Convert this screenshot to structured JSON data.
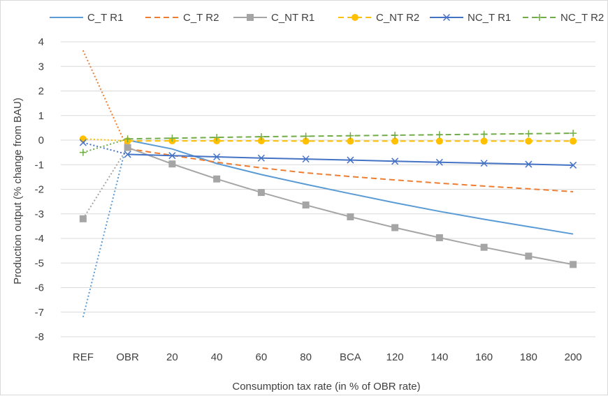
{
  "chart_data": {
    "type": "line",
    "title": "",
    "xlabel": "Consumption tax rate (in % of OBR rate)",
    "ylabel": "Production output (% change from BAU)",
    "categories": [
      "REF",
      "OBR",
      "20",
      "40",
      "60",
      "80",
      "BCA",
      "120",
      "140",
      "160",
      "180",
      "200"
    ],
    "y_ticks": [
      "4",
      "3",
      "2",
      "1",
      "0",
      "-1",
      "-2",
      "-3",
      "-4",
      "-5",
      "-6",
      "-7",
      "-8"
    ],
    "ylim": [
      -8,
      4
    ],
    "grid": "horizontal",
    "legend_position": "top",
    "note": "Segment from REF to OBR is drawn dotted for each series",
    "series": [
      {
        "name": "C_T R1",
        "color": "#5b9bd5",
        "dash": "solid",
        "marker": "none",
        "values": [
          -7.2,
          0.0,
          -0.36,
          -0.95,
          -1.4,
          -1.8,
          -2.18,
          -2.55,
          -2.9,
          -3.22,
          -3.52,
          -3.82
        ]
      },
      {
        "name": "C_T R2",
        "color": "#ed7d31",
        "dash": "dashed",
        "marker": "none",
        "values": [
          3.65,
          -0.35,
          -0.62,
          -0.9,
          -1.13,
          -1.33,
          -1.48,
          -1.62,
          -1.75,
          -1.87,
          -1.98,
          -2.1
        ]
      },
      {
        "name": "C_NT R1",
        "color": "#a5a5a5",
        "dash": "solid",
        "marker": "square",
        "values": [
          -3.2,
          -0.3,
          -0.97,
          -1.58,
          -2.13,
          -2.64,
          -3.12,
          -3.56,
          -3.97,
          -4.36,
          -4.72,
          -5.06
        ]
      },
      {
        "name": "C_NT R2",
        "color": "#ffc000",
        "dash": "dashed",
        "marker": "circle",
        "values": [
          0.05,
          -0.03,
          -0.03,
          -0.03,
          -0.03,
          -0.04,
          -0.04,
          -0.04,
          -0.04,
          -0.04,
          -0.04,
          -0.04
        ]
      },
      {
        "name": "NC_T R1",
        "color": "#4472c4",
        "dash": "solid",
        "marker": "x",
        "values": [
          -0.1,
          -0.58,
          -0.63,
          -0.68,
          -0.73,
          -0.77,
          -0.81,
          -0.86,
          -0.9,
          -0.94,
          -0.98,
          -1.02
        ]
      },
      {
        "name": "NC_T R2",
        "color": "#70ad47",
        "dash": "dashed",
        "marker": "plus",
        "values": [
          -0.5,
          0.05,
          0.08,
          0.11,
          0.14,
          0.16,
          0.18,
          0.2,
          0.22,
          0.24,
          0.26,
          0.28
        ]
      }
    ]
  }
}
